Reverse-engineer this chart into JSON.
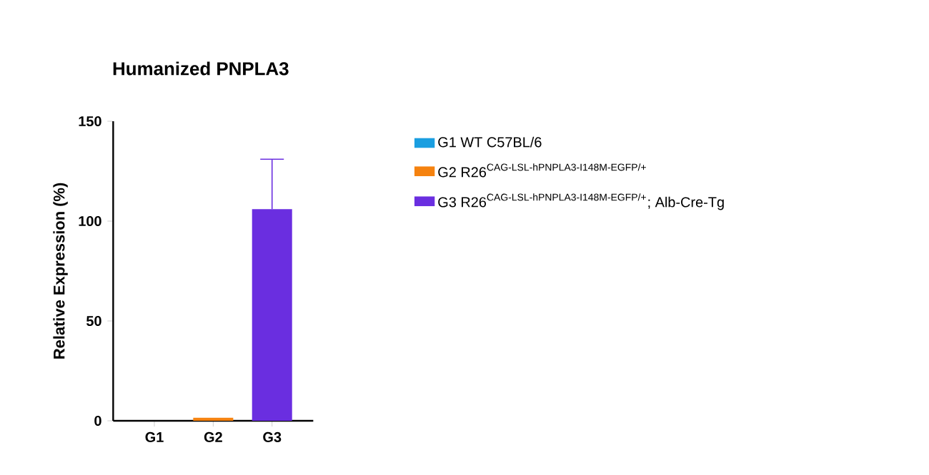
{
  "chart_data": {
    "type": "bar",
    "title": "Humanized PNPLA3",
    "ylabel": "Relative Expression (%)",
    "categories": [
      "G1",
      "G2",
      "G3"
    ],
    "series": [
      {
        "name": "\\mbox{G1 WT C57BL/6}",
        "color": "#1a9ee0",
        "values": [
          0,
          null,
          null
        ]
      },
      {
        "name": "\\mbox{G2 R26}^{\\mbox{\\scriptsize CAG-LSL-hPNPLA3-I148M-EGFP/+}}",
        "color": "#f5820f",
        "values": [
          null,
          1.5,
          null
        ]
      },
      {
        "name": "\\mbox{G3 R26}^{\\mbox{\\scriptsize CAG-LSL-hPNPLA3-I148M-EGFP/+}}\\mbox{; Alb-Cre-Tg}",
        "color": "#6a2ee0",
        "values": [
          null,
          null,
          106
        ],
        "errors": [
          null,
          null,
          [
            106,
            131
          ]
        ]
      }
    ],
    "ylim": [
      0,
      150
    ],
    "yticks": [
      0,
      50,
      100,
      150
    ],
    "legend": "right",
    "grid": false
  }
}
